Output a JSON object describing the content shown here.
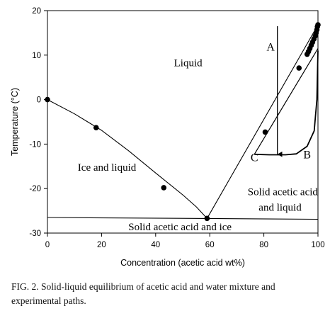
{
  "chart_data": {
    "type": "scatter",
    "xlabel": "Concentration (acetic acid wt%)",
    "ylabel": "Temperature (°C)",
    "xlim": [
      0,
      100
    ],
    "ylim": [
      -30,
      20
    ],
    "xticks": [
      0,
      20,
      40,
      60,
      80,
      100
    ],
    "yticks": [
      -30,
      -20,
      -10,
      0,
      10,
      20
    ],
    "grid": false,
    "measured_points": [
      {
        "x": 0,
        "y": 0
      },
      {
        "x": 18,
        "y": -6.3
      },
      {
        "x": 43,
        "y": -19.8
      },
      {
        "x": 59,
        "y": -26.7
      },
      {
        "x": 80.5,
        "y": -7.3
      },
      {
        "x": 93,
        "y": 7.1
      },
      {
        "x": 96,
        "y": 10.2
      },
      {
        "x": 96.5,
        "y": 10.8
      },
      {
        "x": 97,
        "y": 11.5
      },
      {
        "x": 97.5,
        "y": 12.2
      },
      {
        "x": 98,
        "y": 12.9
      },
      {
        "x": 98.5,
        "y": 13.6
      },
      {
        "x": 99,
        "y": 14.3
      },
      {
        "x": 99.3,
        "y": 15.0
      },
      {
        "x": 99.6,
        "y": 15.7
      },
      {
        "x": 99.8,
        "y": 16.4
      },
      {
        "x": 100,
        "y": 16.8
      }
    ],
    "ice_liquidus_curve": [
      {
        "x": 0,
        "y": 0
      },
      {
        "x": 10,
        "y": -3.2
      },
      {
        "x": 20,
        "y": -6.9
      },
      {
        "x": 30,
        "y": -11.5
      },
      {
        "x": 40,
        "y": -16.5
      },
      {
        "x": 50,
        "y": -21.4
      },
      {
        "x": 55,
        "y": -24.1
      },
      {
        "x": 59,
        "y": -26.7
      }
    ],
    "acid_liquidus_line": [
      {
        "x": 59,
        "y": -26.7
      },
      {
        "x": 100,
        "y": 16.8
      }
    ],
    "eutectic_line": [
      {
        "x": 0,
        "y": -26.5
      },
      {
        "x": 100,
        "y": -26.9
      }
    ],
    "path_lines": [
      {
        "label": "A",
        "points": [
          {
            "x": 85,
            "y": 16.5
          },
          {
            "x": 85,
            "y": -12.3
          }
        ]
      },
      {
        "label": "B",
        "points": [
          {
            "x": 76.5,
            "y": -12.3
          },
          {
            "x": 82,
            "y": -12.4
          },
          {
            "x": 88,
            "y": -12.4
          },
          {
            "x": 92,
            "y": -12.2
          },
          {
            "x": 96,
            "y": -10.5
          },
          {
            "x": 98.6,
            "y": -7.0
          },
          {
            "x": 99.6,
            "y": 0
          },
          {
            "x": 100,
            "y": 11.0
          }
        ]
      },
      {
        "label": "C",
        "points": [
          {
            "x": 76.5,
            "y": -12.3
          },
          {
            "x": 100,
            "y": 11.5
          }
        ]
      }
    ],
    "region_labels": [
      {
        "text": "Liquid",
        "x": 52,
        "y": 7.5
      },
      {
        "text": "Ice and liquid",
        "x": 22,
        "y": -16
      },
      {
        "text": "Solid acetic acid",
        "x": 87,
        "y": -21.5
      },
      {
        "text": "and liquid",
        "x": 86,
        "y": -25
      },
      {
        "text": "Solid acetic acid and ice",
        "x": 49,
        "y": -29.4
      }
    ],
    "path_labels": [
      {
        "text": "A",
        "x": 82.5,
        "y": 11
      },
      {
        "text": "B",
        "x": 96,
        "y": -13.2
      },
      {
        "text": "C",
        "x": 76.5,
        "y": -13.8
      }
    ]
  },
  "caption": {
    "text": "FIG. 2.   Solid-liquid equilibrium of acetic acid and water mixture and experimental paths."
  }
}
